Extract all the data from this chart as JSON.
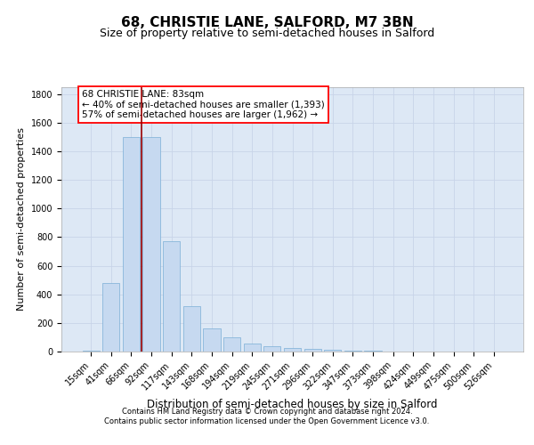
{
  "title1": "68, CHRISTIE LANE, SALFORD, M7 3BN",
  "title2": "Size of property relative to semi-detached houses in Salford",
  "xlabel": "Distribution of semi-detached houses by size in Salford",
  "ylabel": "Number of semi-detached properties",
  "categories": [
    "15sqm",
    "41sqm",
    "66sqm",
    "92sqm",
    "117sqm",
    "143sqm",
    "168sqm",
    "194sqm",
    "219sqm",
    "245sqm",
    "271sqm",
    "296sqm",
    "322sqm",
    "347sqm",
    "373sqm",
    "398sqm",
    "424sqm",
    "449sqm",
    "475sqm",
    "500sqm",
    "526sqm"
  ],
  "values": [
    5,
    480,
    1500,
    1500,
    770,
    320,
    160,
    100,
    55,
    40,
    25,
    18,
    12,
    8,
    4,
    3,
    2,
    2,
    1,
    1,
    2
  ],
  "bar_color": "#c6d9f0",
  "bar_edgecolor": "#7aaed6",
  "grid_color": "#c8d4e8",
  "bg_color": "#dde8f5",
  "vline_color": "#990000",
  "vline_x": 2.5,
  "annotation_text": "68 CHRISTIE LANE: 83sqm\n← 40% of semi-detached houses are smaller (1,393)\n57% of semi-detached houses are larger (1,962) →",
  "footer1": "Contains HM Land Registry data © Crown copyright and database right 2024.",
  "footer2": "Contains public sector information licensed under the Open Government Licence v3.0.",
  "ylim": [
    0,
    1850
  ],
  "yticks": [
    0,
    200,
    400,
    600,
    800,
    1000,
    1200,
    1400,
    1600,
    1800
  ],
  "title1_fontsize": 11,
  "title2_fontsize": 9,
  "xlabel_fontsize": 8.5,
  "ylabel_fontsize": 8,
  "tick_fontsize": 7,
  "annotation_fontsize": 7.5,
  "footer_fontsize": 6
}
